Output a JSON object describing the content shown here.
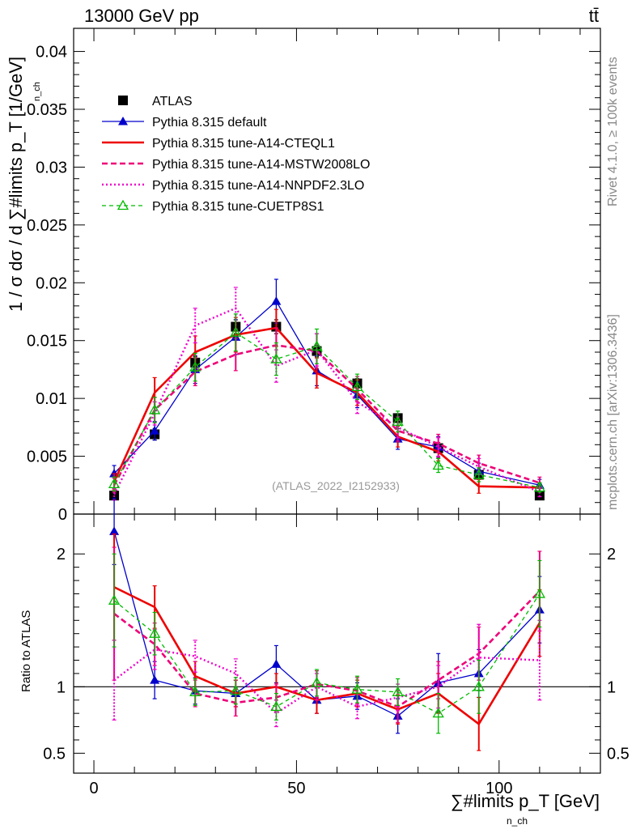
{
  "header": {
    "process": "13000 GeV pp",
    "final_state": "tt̄"
  },
  "side_labels": {
    "rivet": "Rivet 4.1.0, ≥ 100k events",
    "mcplots": "mcplots.cern.ch [arXiv:1306.3436]"
  },
  "chart_data": [
    {
      "type": "line",
      "panel": "main",
      "title": "",
      "xlabel": "∑#limits p_T [GeV]",
      "xlabel_sub": "n_ch",
      "ylabel": "1 / σ dσ / d ∑#limits p_T [1/GeV]",
      "ylabel_sub": "n_ch",
      "xlim": [
        -5,
        125
      ],
      "ylim": [
        0,
        0.042
      ],
      "yticks": [
        0,
        0.005,
        0.01,
        0.015,
        0.02,
        0.025,
        0.03,
        0.035,
        0.04
      ],
      "ytick_labels": [
        "0",
        "0.005",
        "0.01",
        "0.015",
        "0.02",
        "0.025",
        "0.03",
        "0.035",
        "0.04"
      ],
      "xticks": [
        0,
        50,
        100
      ],
      "xtick_labels": [
        "0",
        "50",
        "100"
      ],
      "annotation": "(ATLAS_2022_I2152933)",
      "x": [
        5,
        15,
        25,
        35,
        45,
        55,
        65,
        75,
        85,
        95,
        110
      ],
      "series": [
        {
          "name": "ATLAS",
          "color": "#000000",
          "style": "data",
          "values": [
            0.0016,
            0.0069,
            0.0131,
            0.0162,
            0.0162,
            0.0141,
            0.0113,
            0.0083,
            0.0057,
            0.0034,
            0.0016
          ],
          "errors": [
            0.0002,
            0.0005,
            0.0005,
            0.0006,
            0.0006,
            0.0005,
            0.0004,
            0.0003,
            0.0002,
            0.0002,
            0.0002
          ]
        },
        {
          "name": "Pythia 8.315 default",
          "color": "#0000cc",
          "style": "solid-triangle",
          "values": [
            0.0035,
            0.0072,
            0.0125,
            0.0153,
            0.0184,
            0.0124,
            0.0103,
            0.0065,
            0.0058,
            0.0037,
            0.0025
          ],
          "errors": [
            0.0007,
            0.0008,
            0.0012,
            0.0015,
            0.0019,
            0.0013,
            0.0011,
            0.0009,
            0.0009,
            0.0007,
            0.0005
          ]
        },
        {
          "name": "Pythia 8.315 tune-A14-CTEQL1",
          "color": "#ee0000",
          "style": "solid-thick",
          "values": [
            0.0028,
            0.0105,
            0.014,
            0.0155,
            0.0161,
            0.0122,
            0.0105,
            0.0067,
            0.0054,
            0.0024,
            0.0023
          ],
          "errors": [
            0.0007,
            0.0013,
            0.0014,
            0.0015,
            0.0016,
            0.0013,
            0.0011,
            0.0009,
            0.0008,
            0.0006,
            0.0004
          ]
        },
        {
          "name": "Pythia 8.315 tune-A14-MSTW2008LO",
          "color": "#ee0077",
          "style": "dashed",
          "values": [
            0.0025,
            0.009,
            0.0123,
            0.0138,
            0.0146,
            0.0141,
            0.0108,
            0.0072,
            0.0061,
            0.0044,
            0.0027
          ],
          "errors": [
            0.0006,
            0.0011,
            0.0012,
            0.0014,
            0.0015,
            0.0015,
            0.0011,
            0.0009,
            0.0008,
            0.0007,
            0.0005
          ]
        },
        {
          "name": "Pythia 8.315 tune-A14-NNPDF2.3LO",
          "color": "#ee00cc",
          "style": "dotted",
          "values": [
            0.0017,
            0.0087,
            0.0163,
            0.0178,
            0.0128,
            0.0142,
            0.0097,
            0.0075,
            0.0058,
            0.0041,
            0.0019
          ],
          "errors": [
            0.0005,
            0.001,
            0.0015,
            0.0018,
            0.0014,
            0.0014,
            0.001,
            0.0009,
            0.0008,
            0.0007,
            0.0004
          ]
        },
        {
          "name": "Pythia 8.315 tune-CUETP8S1",
          "color": "#00bb00",
          "style": "dashed-open-triangle",
          "values": [
            0.0026,
            0.009,
            0.0127,
            0.0157,
            0.0134,
            0.0145,
            0.011,
            0.008,
            0.0042,
            0.0034,
            0.0023
          ],
          "errors": [
            0.0006,
            0.0011,
            0.0012,
            0.0016,
            0.0014,
            0.0015,
            0.0011,
            0.0009,
            0.0006,
            0.0006,
            0.0004
          ]
        }
      ]
    },
    {
      "type": "line",
      "panel": "ratio",
      "ylabel": "Ratio to ATLAS",
      "xlim": [
        -5,
        125
      ],
      "ylim": [
        0.35,
        2.3
      ],
      "yticks": [
        0.5,
        1,
        2
      ],
      "ytick_labels": [
        "0.5",
        "1",
        "2"
      ],
      "reference": 1,
      "x": [
        5,
        15,
        25,
        35,
        45,
        55,
        65,
        75,
        85,
        95,
        110
      ],
      "series": [
        {
          "name": "Pythia 8.315 default",
          "color": "#0000cc",
          "style": "solid-triangle",
          "values": [
            2.17,
            1.05,
            0.97,
            0.95,
            1.17,
            0.9,
            0.93,
            0.78,
            1.03,
            1.1,
            1.58
          ],
          "errors": [
            0.25,
            0.14,
            0.1,
            0.1,
            0.14,
            0.1,
            0.1,
            0.13,
            0.22,
            0.18,
            0.25
          ]
        },
        {
          "name": "Pythia 8.315 tune-A14-CTEQL1",
          "color": "#ee0000",
          "style": "solid-thick",
          "values": [
            1.75,
            1.6,
            1.08,
            0.95,
            1.0,
            0.9,
            0.95,
            0.83,
            0.95,
            0.72,
            1.48
          ],
          "errors": [
            0.4,
            0.16,
            0.11,
            0.1,
            0.1,
            0.1,
            0.1,
            0.11,
            0.15,
            0.2,
            0.25
          ]
        },
        {
          "name": "Pythia 8.315 tune-A14-MSTW2008LO",
          "color": "#ee0077",
          "style": "dashed",
          "values": [
            1.55,
            1.32,
            0.95,
            0.88,
            0.92,
            1.02,
            0.97,
            0.85,
            1.05,
            1.25,
            1.72
          ],
          "errors": [
            0.5,
            0.16,
            0.1,
            0.1,
            0.1,
            0.1,
            0.1,
            0.12,
            0.14,
            0.2,
            0.3
          ]
        },
        {
          "name": "Pythia 8.315 tune-A14-NNPDF2.3LO",
          "color": "#ee00cc",
          "style": "dotted",
          "values": [
            1.05,
            1.28,
            1.23,
            1.1,
            0.8,
            1.0,
            0.85,
            0.92,
            1.0,
            1.22,
            1.2
          ],
          "errors": [
            0.3,
            0.15,
            0.12,
            0.11,
            0.1,
            0.1,
            0.09,
            0.1,
            0.16,
            0.25,
            0.3
          ]
        },
        {
          "name": "Pythia 8.315 tune-CUETP8S1",
          "color": "#00bb00",
          "style": "dashed-open-triangle",
          "values": [
            1.65,
            1.4,
            0.96,
            0.97,
            0.85,
            1.03,
            0.98,
            0.96,
            0.8,
            1.0,
            1.7
          ],
          "errors": [
            0.35,
            0.16,
            0.1,
            0.1,
            0.1,
            0.1,
            0.1,
            0.1,
            0.15,
            0.2,
            0.25
          ]
        }
      ]
    }
  ]
}
